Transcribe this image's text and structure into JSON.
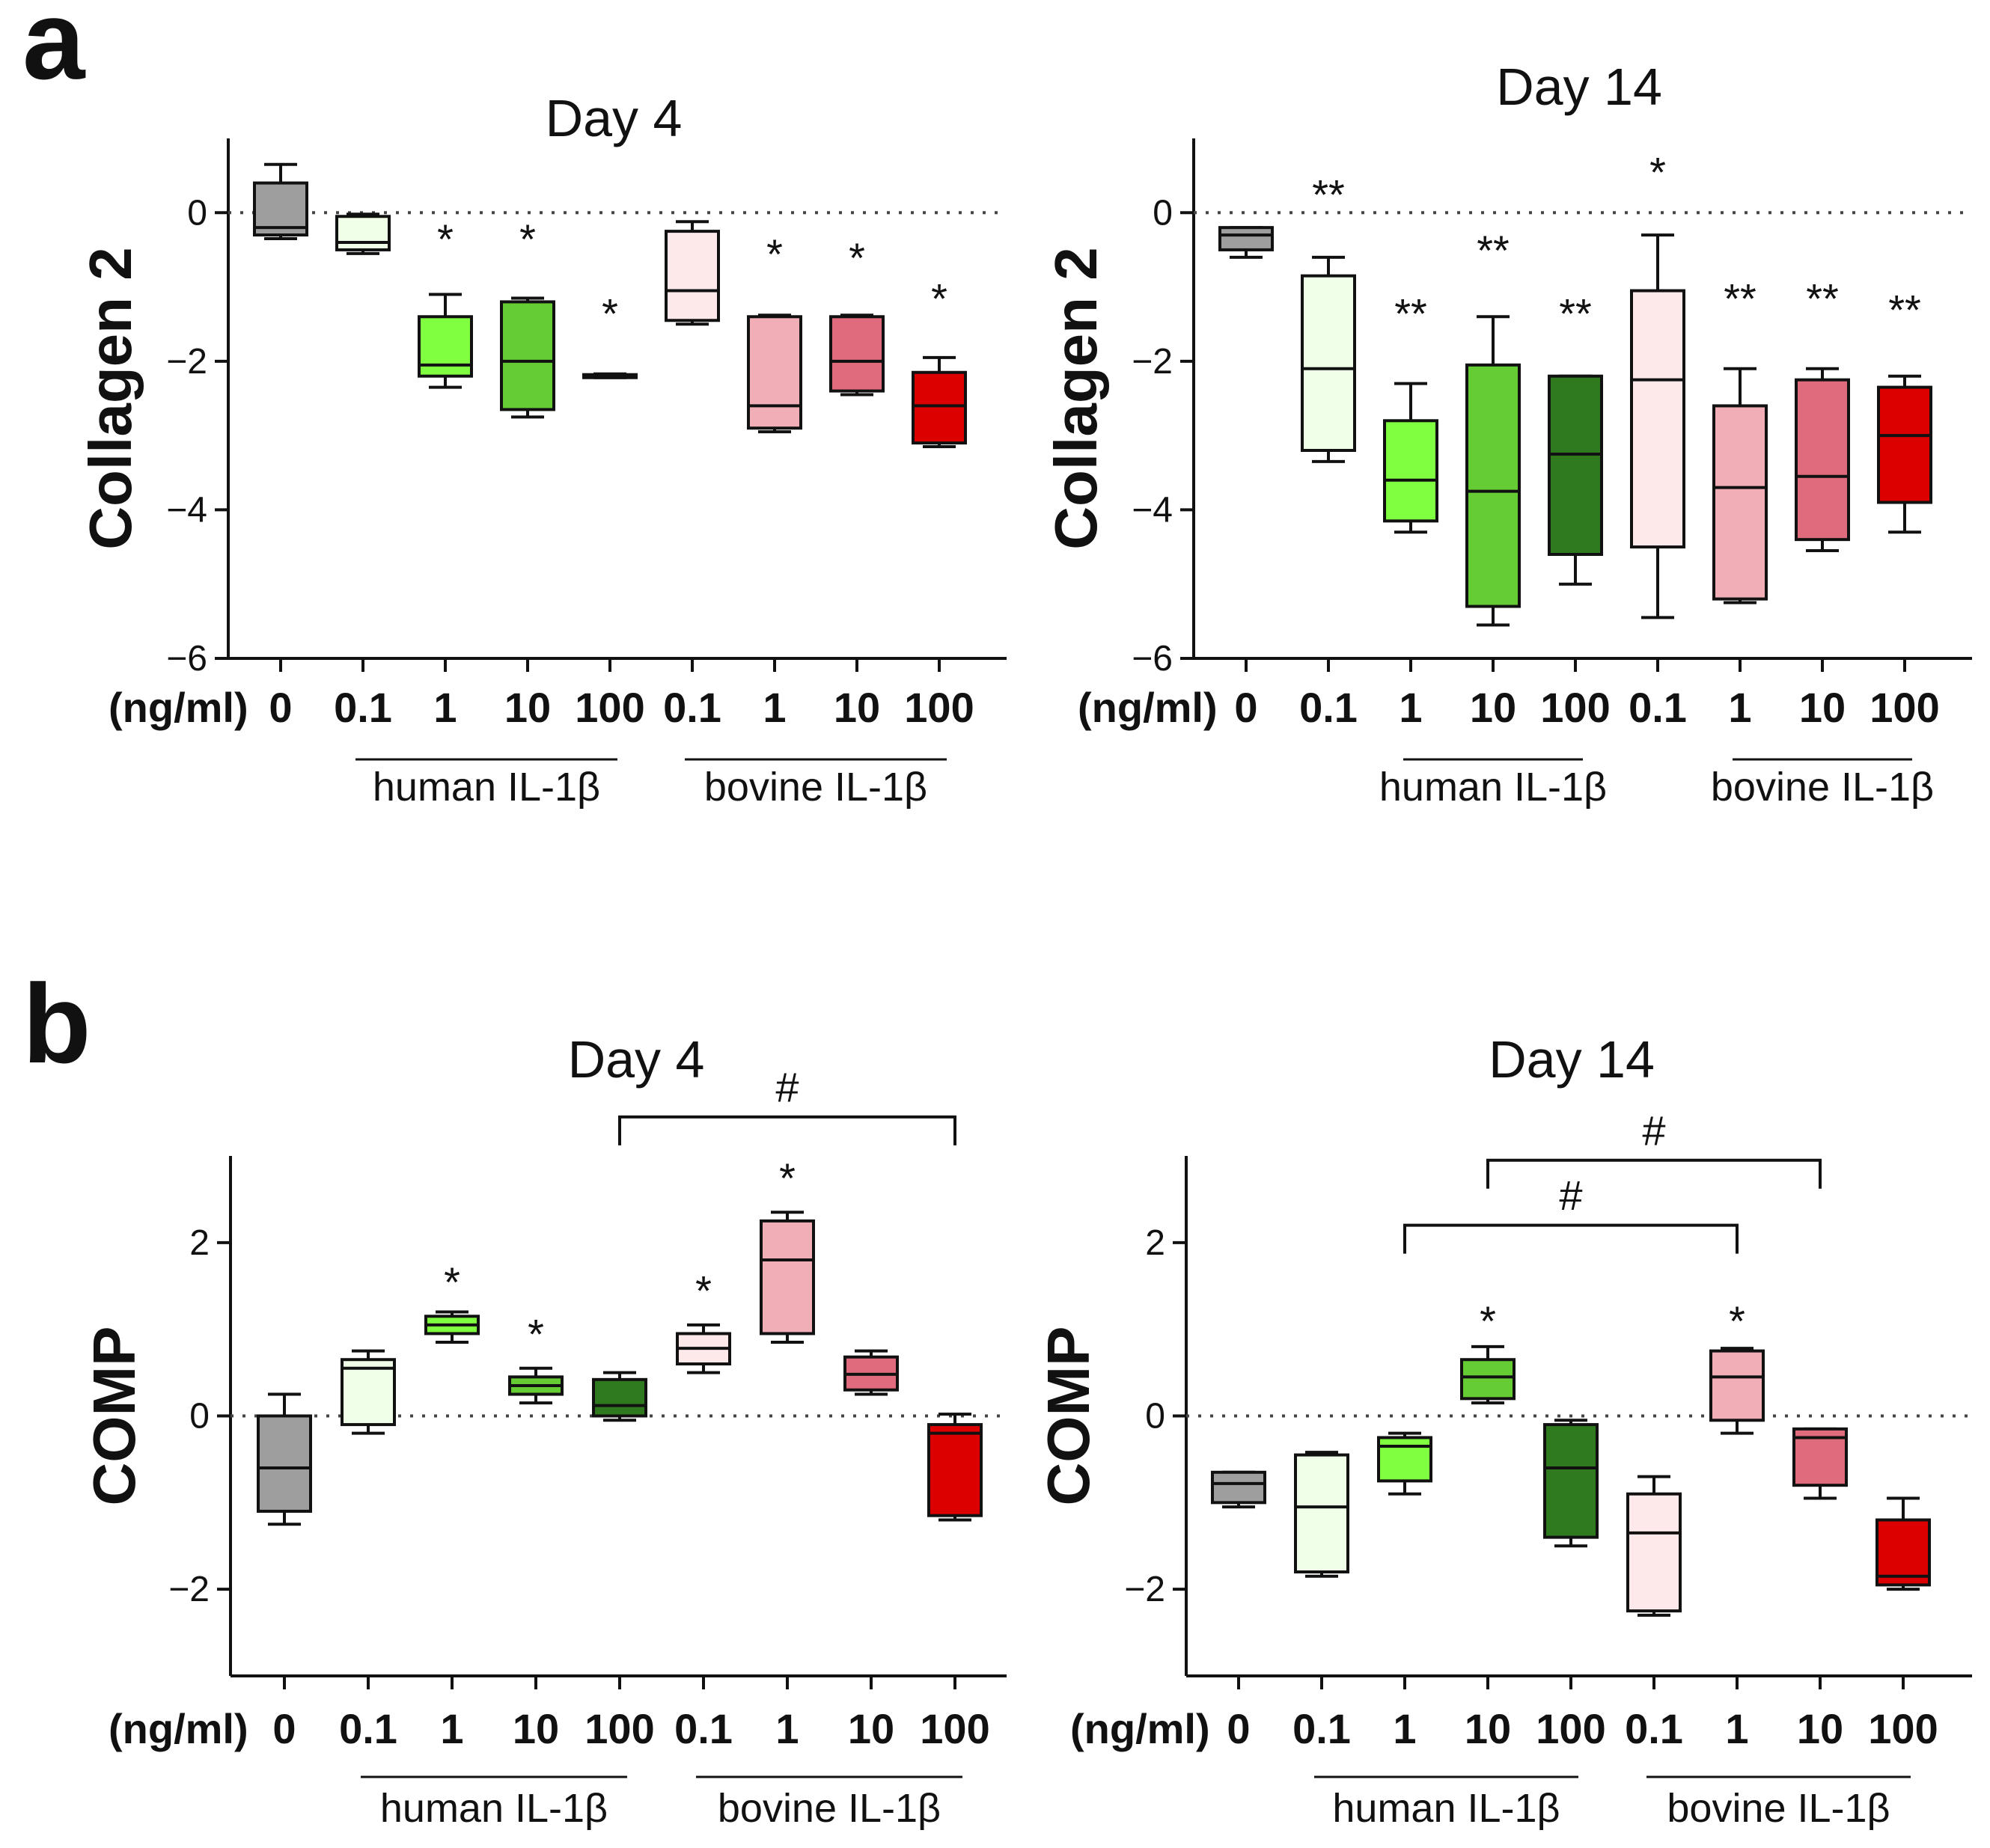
{
  "figure": {
    "panel_a_letter": "a",
    "panel_b_letter": "b"
  },
  "colors": [
    "#9e9e9e",
    "#f0ffe8",
    "#7fff40",
    "#66cc33",
    "#2f7a1f",
    "#fde8ea",
    "#f2aeb7",
    "#e06b7c",
    "#dd0000"
  ],
  "chart_data": [
    {
      "type": "box",
      "panel": "a",
      "title": "Day 4",
      "ylabel": "Collagen 2",
      "ylim": [
        -6,
        1
      ],
      "yticks": [
        0,
        -2,
        -4,
        -6
      ],
      "ytick_labels": [
        "0",
        "−2",
        "−4",
        "−6"
      ],
      "unit_label": "(ng/ml)",
      "categories": [
        "0",
        "0.1",
        "1",
        "10",
        "100",
        "0.1",
        "1",
        "10",
        "100"
      ],
      "groups": [
        {
          "label": "human IL-1β",
          "from": 1,
          "to": 4
        },
        {
          "label": "bovine IL-1β",
          "from": 5,
          "to": 8
        }
      ],
      "boxes": [
        {
          "min": -0.35,
          "q1": -0.3,
          "median": -0.2,
          "q3": 0.4,
          "max": 0.65
        },
        {
          "min": -0.55,
          "q1": -0.5,
          "median": -0.4,
          "q3": -0.05,
          "max": -0.02
        },
        {
          "min": -2.35,
          "q1": -2.2,
          "median": -2.05,
          "q3": -1.4,
          "max": -1.1
        },
        {
          "min": -2.75,
          "q1": -2.65,
          "median": -2.0,
          "q3": -1.2,
          "max": -1.15
        },
        {
          "min": -2.22,
          "q1": -2.2,
          "median": -2.2,
          "q3": -2.18,
          "max": -2.17
        },
        {
          "min": -1.5,
          "q1": -1.45,
          "median": -1.05,
          "q3": -0.25,
          "max": -0.12
        },
        {
          "min": -2.95,
          "q1": -2.9,
          "median": -2.6,
          "q3": -1.4,
          "max": -1.38
        },
        {
          "min": -2.45,
          "q1": -2.4,
          "median": -2.0,
          "q3": -1.4,
          "max": -1.38
        },
        {
          "min": -3.15,
          "q1": -3.1,
          "median": -2.6,
          "q3": -2.15,
          "max": -1.95
        }
      ],
      "annotations": [
        {
          "index": 2,
          "text": "*",
          "y": -0.35
        },
        {
          "index": 3,
          "text": "*",
          "y": -0.35
        },
        {
          "index": 4,
          "text": "*",
          "y": -1.35
        },
        {
          "index": 6,
          "text": "*",
          "y": -0.55
        },
        {
          "index": 7,
          "text": "*",
          "y": -0.6
        },
        {
          "index": 8,
          "text": "*",
          "y": -1.15
        }
      ],
      "brackets": []
    },
    {
      "type": "box",
      "panel": "a",
      "title": "Day 14",
      "ylabel": "Collagen 2",
      "ylim": [
        -6,
        1
      ],
      "yticks": [
        0,
        -2,
        -4,
        -6
      ],
      "ytick_labels": [
        "0",
        "−2",
        "−4",
        "−6"
      ],
      "unit_label": "(ng/ml)",
      "categories": [
        "0",
        "0.1",
        "1",
        "10",
        "100",
        "0.1",
        "1",
        "10",
        "100"
      ],
      "groups": [
        {
          "label": "human IL-1β",
          "from": 2,
          "to": 4
        },
        {
          "label": "bovine IL-1β",
          "from": 6,
          "to": 8
        }
      ],
      "boxes": [
        {
          "min": -0.6,
          "q1": -0.5,
          "median": -0.3,
          "q3": -0.2,
          "max": -0.2
        },
        {
          "min": -3.35,
          "q1": -3.2,
          "median": -2.1,
          "q3": -0.85,
          "max": -0.6
        },
        {
          "min": -4.3,
          "q1": -4.15,
          "median": -3.6,
          "q3": -2.8,
          "max": -2.3
        },
        {
          "min": -5.55,
          "q1": -5.3,
          "median": -3.75,
          "q3": -2.05,
          "max": -1.4
        },
        {
          "min": -5.0,
          "q1": -4.6,
          "median": -3.25,
          "q3": -2.2,
          "max": -2.2
        },
        {
          "min": -5.45,
          "q1": -4.5,
          "median": -2.25,
          "q3": -1.05,
          "max": -0.3
        },
        {
          "min": -5.25,
          "q1": -5.2,
          "median": -3.7,
          "q3": -2.6,
          "max": -2.1
        },
        {
          "min": -4.55,
          "q1": -4.4,
          "median": -3.55,
          "q3": -2.25,
          "max": -2.1
        },
        {
          "min": -4.3,
          "q1": -3.9,
          "median": -3.0,
          "q3": -2.35,
          "max": -2.2
        }
      ],
      "annotations": [
        {
          "index": 1,
          "text": "**",
          "y": 0.25
        },
        {
          "index": 2,
          "text": "**",
          "y": -1.35
        },
        {
          "index": 3,
          "text": "**",
          "y": -0.5
        },
        {
          "index": 4,
          "text": "**",
          "y": -1.35
        },
        {
          "index": 5,
          "text": "*",
          "y": 0.55
        },
        {
          "index": 6,
          "text": "**",
          "y": -1.15
        },
        {
          "index": 7,
          "text": "**",
          "y": -1.15
        },
        {
          "index": 8,
          "text": "**",
          "y": -1.3
        }
      ],
      "brackets": []
    },
    {
      "type": "box",
      "panel": "b",
      "title": "Day 4",
      "ylabel": "COMP",
      "ylim": [
        -3,
        3
      ],
      "yticks": [
        2,
        0,
        -2
      ],
      "ytick_labels": [
        "2",
        "0",
        "−2"
      ],
      "unit_label": "(ng/ml)",
      "categories": [
        "0",
        "0.1",
        "1",
        "10",
        "100",
        "0.1",
        "1",
        "10",
        "100"
      ],
      "groups": [
        {
          "label": "human IL-1β",
          "from": 1,
          "to": 4
        },
        {
          "label": "bovine IL-1β",
          "from": 5,
          "to": 8
        }
      ],
      "boxes": [
        {
          "min": -1.25,
          "q1": -1.1,
          "median": -0.6,
          "q3": 0.0,
          "max": 0.25
        },
        {
          "min": -0.2,
          "q1": -0.1,
          "median": 0.55,
          "q3": 0.65,
          "max": 0.75
        },
        {
          "min": 0.85,
          "q1": 0.95,
          "median": 1.05,
          "q3": 1.15,
          "max": 1.2
        },
        {
          "min": 0.15,
          "q1": 0.25,
          "median": 0.35,
          "q3": 0.45,
          "max": 0.55
        },
        {
          "min": -0.05,
          "q1": 0.0,
          "median": 0.12,
          "q3": 0.42,
          "max": 0.5
        },
        {
          "min": 0.5,
          "q1": 0.6,
          "median": 0.78,
          "q3": 0.95,
          "max": 1.05
        },
        {
          "min": 0.85,
          "q1": 0.95,
          "median": 1.8,
          "q3": 2.25,
          "max": 2.35
        },
        {
          "min": 0.25,
          "q1": 0.3,
          "median": 0.48,
          "q3": 0.68,
          "max": 0.75
        },
        {
          "min": -1.2,
          "q1": -1.15,
          "median": -0.2,
          "q3": -0.1,
          "max": 0.02
        }
      ],
      "annotations": [
        {
          "index": 2,
          "text": "*",
          "y": 1.55
        },
        {
          "index": 3,
          "text": "*",
          "y": 0.95
        },
        {
          "index": 5,
          "text": "*",
          "y": 1.45
        },
        {
          "index": 6,
          "text": "*",
          "y": 2.75
        }
      ],
      "brackets": [
        {
          "from": 4,
          "to": 8,
          "y": 3.45,
          "text": "#",
          "text_y": 3.8
        }
      ]
    },
    {
      "type": "box",
      "panel": "b",
      "title": "Day 14",
      "ylabel": "COMP",
      "ylim": [
        -3,
        3
      ],
      "yticks": [
        2,
        0,
        -2
      ],
      "ytick_labels": [
        "2",
        "0",
        "−2"
      ],
      "unit_label": "(ng/ml)",
      "categories": [
        "0",
        "0.1",
        "1",
        "10",
        "100",
        "0.1",
        "1",
        "10",
        "100"
      ],
      "groups": [
        {
          "label": "human IL-1β",
          "from": 1,
          "to": 4
        },
        {
          "label": "bovine IL-1β",
          "from": 5,
          "to": 8
        }
      ],
      "boxes": [
        {
          "min": -1.05,
          "q1": -1.0,
          "median": -0.78,
          "q3": -0.65,
          "max": -0.65
        },
        {
          "min": -1.85,
          "q1": -1.8,
          "median": -1.05,
          "q3": -0.45,
          "max": -0.42
        },
        {
          "min": -0.9,
          "q1": -0.75,
          "median": -0.35,
          "q3": -0.25,
          "max": -0.2
        },
        {
          "min": 0.15,
          "q1": 0.2,
          "median": 0.45,
          "q3": 0.65,
          "max": 0.8
        },
        {
          "min": -1.5,
          "q1": -1.4,
          "median": -0.6,
          "q3": -0.1,
          "max": -0.05
        },
        {
          "min": -2.3,
          "q1": -2.25,
          "median": -1.35,
          "q3": -0.9,
          "max": -0.7
        },
        {
          "min": -0.2,
          "q1": -0.05,
          "median": 0.45,
          "q3": 0.75,
          "max": 0.78
        },
        {
          "min": -0.95,
          "q1": -0.8,
          "median": -0.25,
          "q3": -0.15,
          "max": -0.15
        },
        {
          "min": -2.0,
          "q1": -1.95,
          "median": -1.85,
          "q3": -1.2,
          "max": -0.95
        }
      ],
      "annotations": [
        {
          "index": 3,
          "text": "*",
          "y": 1.1
        },
        {
          "index": 6,
          "text": "*",
          "y": 1.1
        }
      ],
      "brackets": [
        {
          "from": 2,
          "to": 6,
          "y": 2.2,
          "text": "#",
          "text_y": 2.55
        },
        {
          "from": 3,
          "to": 7,
          "y": 2.95,
          "text": "#",
          "text_y": 3.3
        }
      ]
    }
  ]
}
